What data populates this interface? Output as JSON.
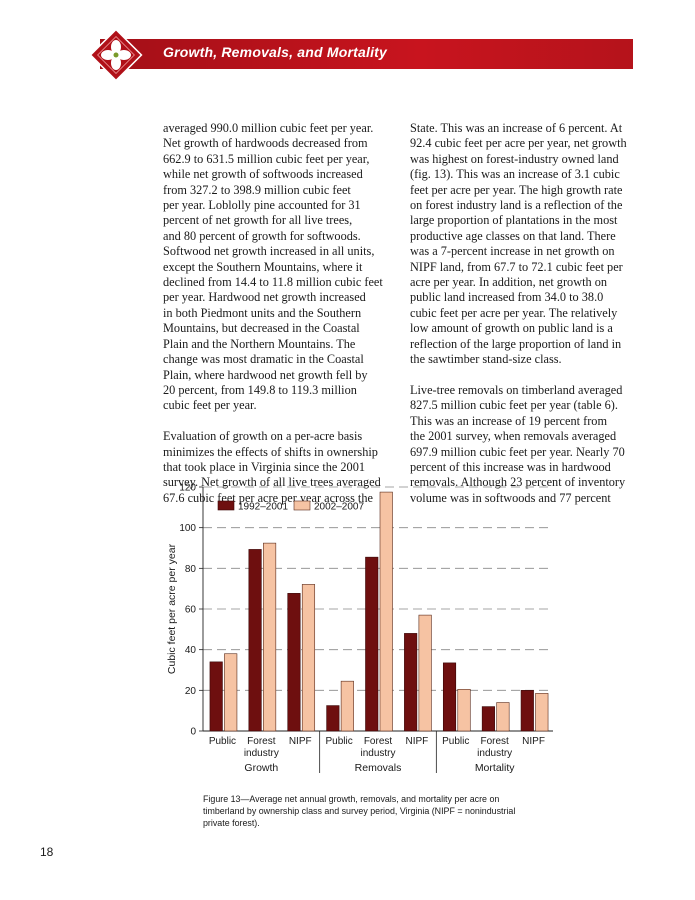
{
  "header": {
    "title": "Growth, Removals, and Mortality",
    "band_color": "#c0121c"
  },
  "body": {
    "left_paragraphs": [
      "averaged 990.0 million cubic feet per year.\nNet growth of hardwoods decreased from\n662.9 to 631.5 million cubic feet per year,\nwhile net growth of softwoods increased\nfrom 327.2 to 398.9 million cubic feet\nper year. Loblolly pine accounted for 31\npercent of net growth for all live trees,\nand 80 percent of growth for softwoods.\nSoftwood net growth increased in all units,\nexcept the Southern Mountains, where it\ndeclined from 14.4 to 11.8 million cubic feet\nper year. Hardwood net growth increased\nin both Piedmont units and the Southern\nMountains, but decreased in the Coastal\nPlain and the Northern Mountains. The\nchange was most dramatic in the Coastal\nPlain, where hardwood net growth fell by\n20 percent, from 149.8 to 119.3 million\ncubic feet per year.",
      "Evaluation of growth on a per-acre basis\nminimizes the effects of shifts in ownership\nthat took place in Virginia since the 2001\nsurvey. Net growth of all live trees averaged\n67.6 cubic feet per acre per year across the"
    ],
    "right_paragraphs": [
      "State. This was an increase of 6 percent. At\n92.4 cubic feet per acre per year, net growth\nwas highest on forest-industry owned land\n(fig. 13). This was an increase of 3.1 cubic\nfeet per acre per year. The high growth rate\non forest industry land is a reflection of the\nlarge proportion of plantations in the most\nproductive age classes on that land. There\nwas a 7-percent increase in net growth on\nNIPF land, from 67.7 to 72.1 cubic feet per\nacre per year. In addition, net growth on\npublic land increased from 34.0 to 38.0\ncubic feet per acre per year. The relatively\nlow amount of growth on public land is a\nreflection of the large proportion of land in\nthe sawtimber stand-size class.",
      "Live-tree removals on timberland averaged\n827.5 million cubic feet per year (table 6).\nThis was an increase of 19 percent from\nthe 2001 survey, when removals averaged\n697.9 million cubic feet per year. Nearly 70\npercent of this increase was in hardwood\nremovals. Although 23 percent of inventory\nvolume was in softwoods and 77 percent"
    ]
  },
  "chart_data": {
    "type": "bar",
    "title": "",
    "ylabel": "Cubic feet per acre per year",
    "xlabel": "",
    "ylim": [
      0,
      120
    ],
    "yticks": [
      0,
      20,
      40,
      60,
      80,
      100,
      120
    ],
    "grid": "dashed horizontal",
    "legend_position": "top-left",
    "groups": [
      {
        "name": "Growth",
        "categories": [
          "Public",
          "Forest\nindustry",
          "NIPF"
        ]
      },
      {
        "name": "Removals",
        "categories": [
          "Public",
          "Forest\nindustry",
          "NIPF"
        ]
      },
      {
        "name": "Mortality",
        "categories": [
          "Public",
          "Forest\nindustry",
          "NIPF"
        ]
      }
    ],
    "series": [
      {
        "name": "1992–2001",
        "color": "#6e0f0f",
        "values": [
          34.0,
          89.3,
          67.7,
          12.5,
          85.5,
          48.0,
          33.5,
          12.0,
          20.0
        ]
      },
      {
        "name": "2002–2007",
        "color": "#f6c3a3",
        "values": [
          38.0,
          92.4,
          72.1,
          24.5,
          117.5,
          57.0,
          20.5,
          14.0,
          18.5
        ]
      }
    ]
  },
  "caption": "Figure 13—Average net annual growth, removals, and mortality per acre on\ntimberland by ownership class and survey period, Virginia (NIPF = nonindustrial\nprivate forest).",
  "page_number": "18"
}
